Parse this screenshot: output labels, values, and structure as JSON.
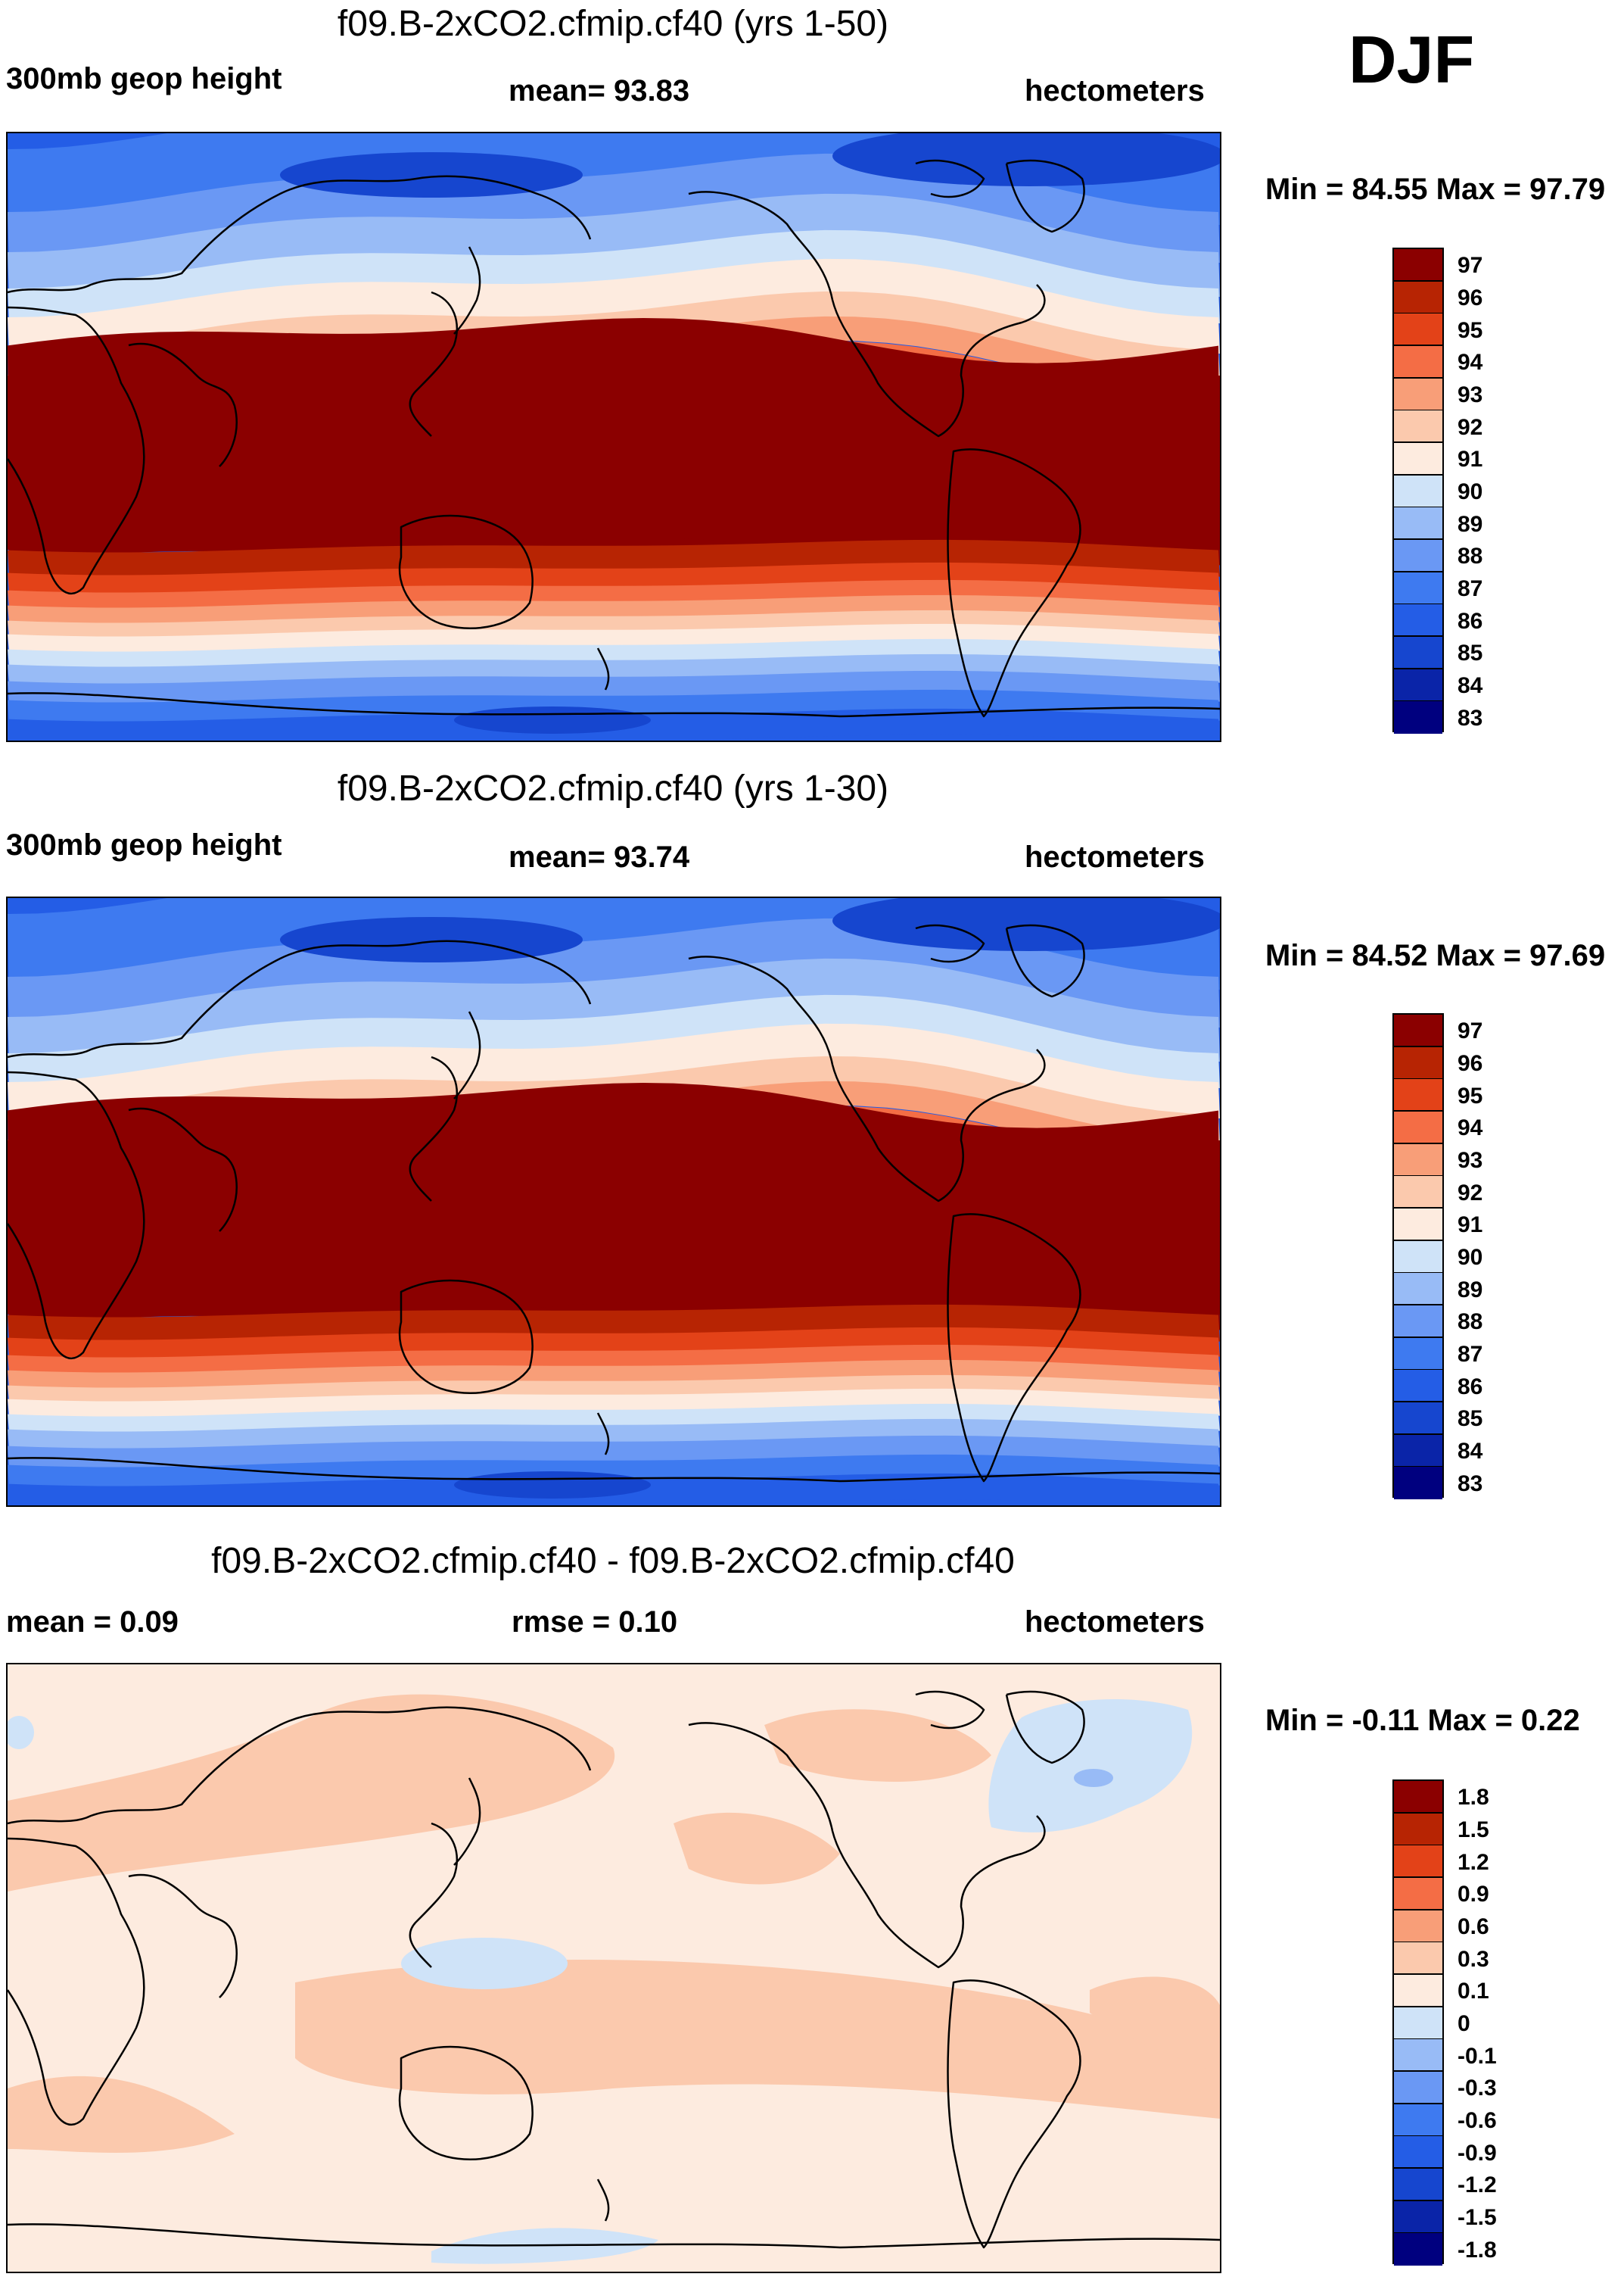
{
  "season": "DJF",
  "colors": {
    "abs_scale": [
      "#00007f",
      "#0a24a8",
      "#1646cf",
      "#245de6",
      "#3e7af0",
      "#6a98f4",
      "#98bbf6",
      "#cfe3f8",
      "#fdebdf",
      "#fbc9ad",
      "#f89e78",
      "#f46d45",
      "#e34218",
      "#b72403",
      "#8b0000"
    ],
    "diff_scale": [
      "#00007f",
      "#0a24a8",
      "#1646cf",
      "#245de6",
      "#3e7af0",
      "#6a98f4",
      "#98bbf6",
      "#cfe3f8",
      "#fdebdf",
      "#fbc9ad",
      "#f89e78",
      "#f46d45",
      "#e34218",
      "#b72403",
      "#8b0000"
    ],
    "coast": "#000000"
  },
  "chart_data": [
    {
      "type": "heatmap",
      "title": "f09.B-2xCO2.cfmip.cf40 (yrs 1-50)",
      "variable": "300mb geop height",
      "mean_label": "mean=  93.83",
      "units": "hectometers",
      "minmax_label": "Min =  84.55 Max =  97.79",
      "min": 84.55,
      "max": 97.79,
      "mean": 93.83,
      "legend_levels": [
        "97",
        "96",
        "95",
        "94",
        "93",
        "92",
        "91",
        "90",
        "89",
        "88",
        "87",
        "86",
        "85",
        "84",
        "83"
      ]
    },
    {
      "type": "heatmap",
      "title": "f09.B-2xCO2.cfmip.cf40 (yrs 1-30)",
      "variable": "300mb geop height",
      "mean_label": "mean=  93.74",
      "units": "hectometers",
      "minmax_label": "Min =  84.52 Max =  97.69",
      "min": 84.52,
      "max": 97.69,
      "mean": 93.74,
      "legend_levels": [
        "97",
        "96",
        "95",
        "94",
        "93",
        "92",
        "91",
        "90",
        "89",
        "88",
        "87",
        "86",
        "85",
        "84",
        "83"
      ]
    },
    {
      "type": "heatmap",
      "title": "f09.B-2xCO2.cfmip.cf40 - f09.B-2xCO2.cfmip.cf40",
      "mean_label": "mean =   0.09",
      "rmse_label": "rmse =   0.10",
      "units": "hectometers",
      "minmax_label": "Min =  -0.11 Max =   0.22",
      "min": -0.11,
      "max": 0.22,
      "mean": 0.09,
      "rmse": 0.1,
      "legend_levels": [
        "1.8",
        "1.5",
        "1.2",
        "0.9",
        "0.6",
        "0.3",
        "0.1",
        "0",
        "-0.1",
        "-0.3",
        "-0.6",
        "-0.9",
        "-1.2",
        "-1.5",
        "-1.8"
      ]
    }
  ]
}
